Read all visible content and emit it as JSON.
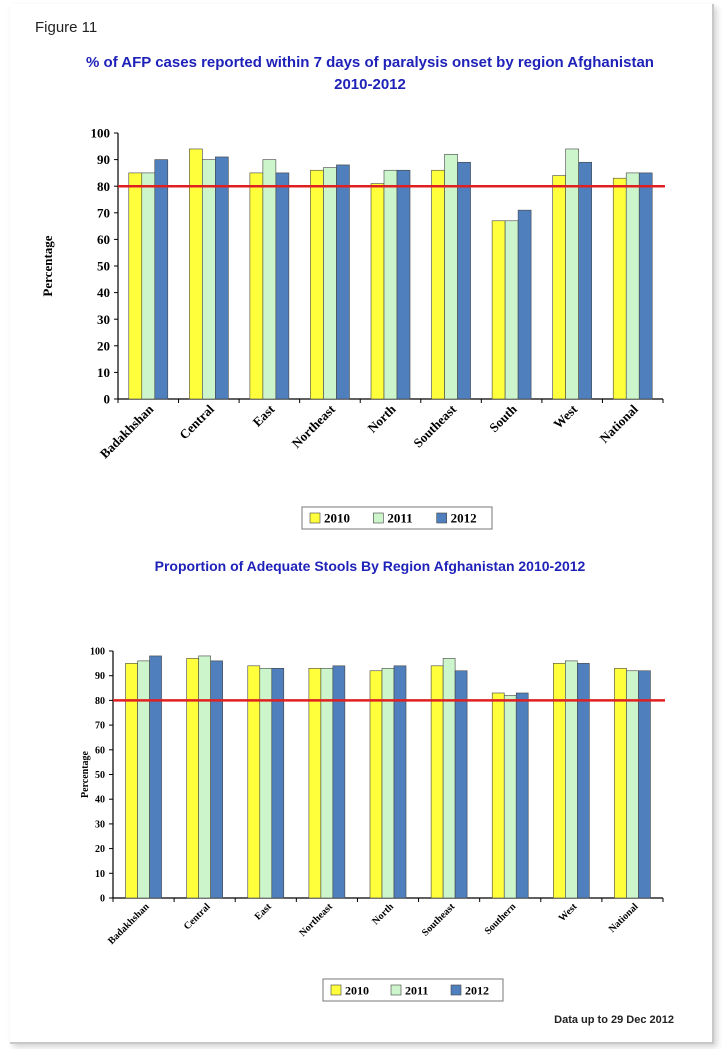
{
  "figure_label": "Figure 11",
  "footnote": "Data up to 29 Dec 2012",
  "colors": {
    "title": "#1f22b8",
    "series_2010": "#ffff3c",
    "series_2011": "#ccf5cc",
    "series_2012": "#4f7fbd",
    "target_line": "#e02020"
  },
  "chart_data": [
    {
      "type": "bar",
      "title": "% of AFP cases reported within 7 days of paralysis onset by region Afghanistan 2010-2012",
      "title_line1": "% of AFP cases reported within 7 days of paralysis onset by region Afghanistan",
      "title_line2": "2010-2012",
      "ylabel": "Percentage",
      "xlabel": "",
      "ylim": [
        0,
        100
      ],
      "yticks": [
        0,
        10,
        20,
        30,
        40,
        50,
        60,
        70,
        80,
        90,
        100
      ],
      "categories": [
        "Badakhshan",
        "Central",
        "East",
        "Northeast",
        "North",
        "Southeast",
        "South",
        "West",
        "National"
      ],
      "series": [
        {
          "name": "2010",
          "values": [
            85,
            94,
            85,
            86,
            81,
            86,
            67,
            84,
            83
          ]
        },
        {
          "name": "2011",
          "values": [
            85,
            90,
            90,
            87,
            86,
            92,
            67,
            94,
            85
          ]
        },
        {
          "name": "2012",
          "values": [
            90,
            91,
            85,
            88,
            86,
            89,
            71,
            89,
            85
          ]
        }
      ],
      "target_line": 80,
      "legend_position": "bottom"
    },
    {
      "type": "bar",
      "title": "Proportion of Adequate Stools By Region Afghanistan 2010-2012",
      "ylabel": "Percentage",
      "xlabel": "",
      "ylim": [
        0,
        100
      ],
      "yticks": [
        0,
        10,
        20,
        30,
        40,
        50,
        60,
        70,
        80,
        90,
        100
      ],
      "categories": [
        "Badakhshan",
        "Central",
        "East",
        "Northeast",
        "North",
        "Southeast",
        "Southern",
        "West",
        "National"
      ],
      "series": [
        {
          "name": "2010",
          "values": [
            95,
            97,
            94,
            93,
            92,
            94,
            83,
            95,
            93
          ]
        },
        {
          "name": "2011",
          "values": [
            96,
            98,
            93,
            93,
            93,
            97,
            82,
            96,
            92
          ]
        },
        {
          "name": "2012",
          "values": [
            98,
            96,
            93,
            94,
            94,
            92,
            83,
            95,
            92
          ]
        }
      ],
      "target_line": 80,
      "legend_position": "bottom"
    }
  ]
}
